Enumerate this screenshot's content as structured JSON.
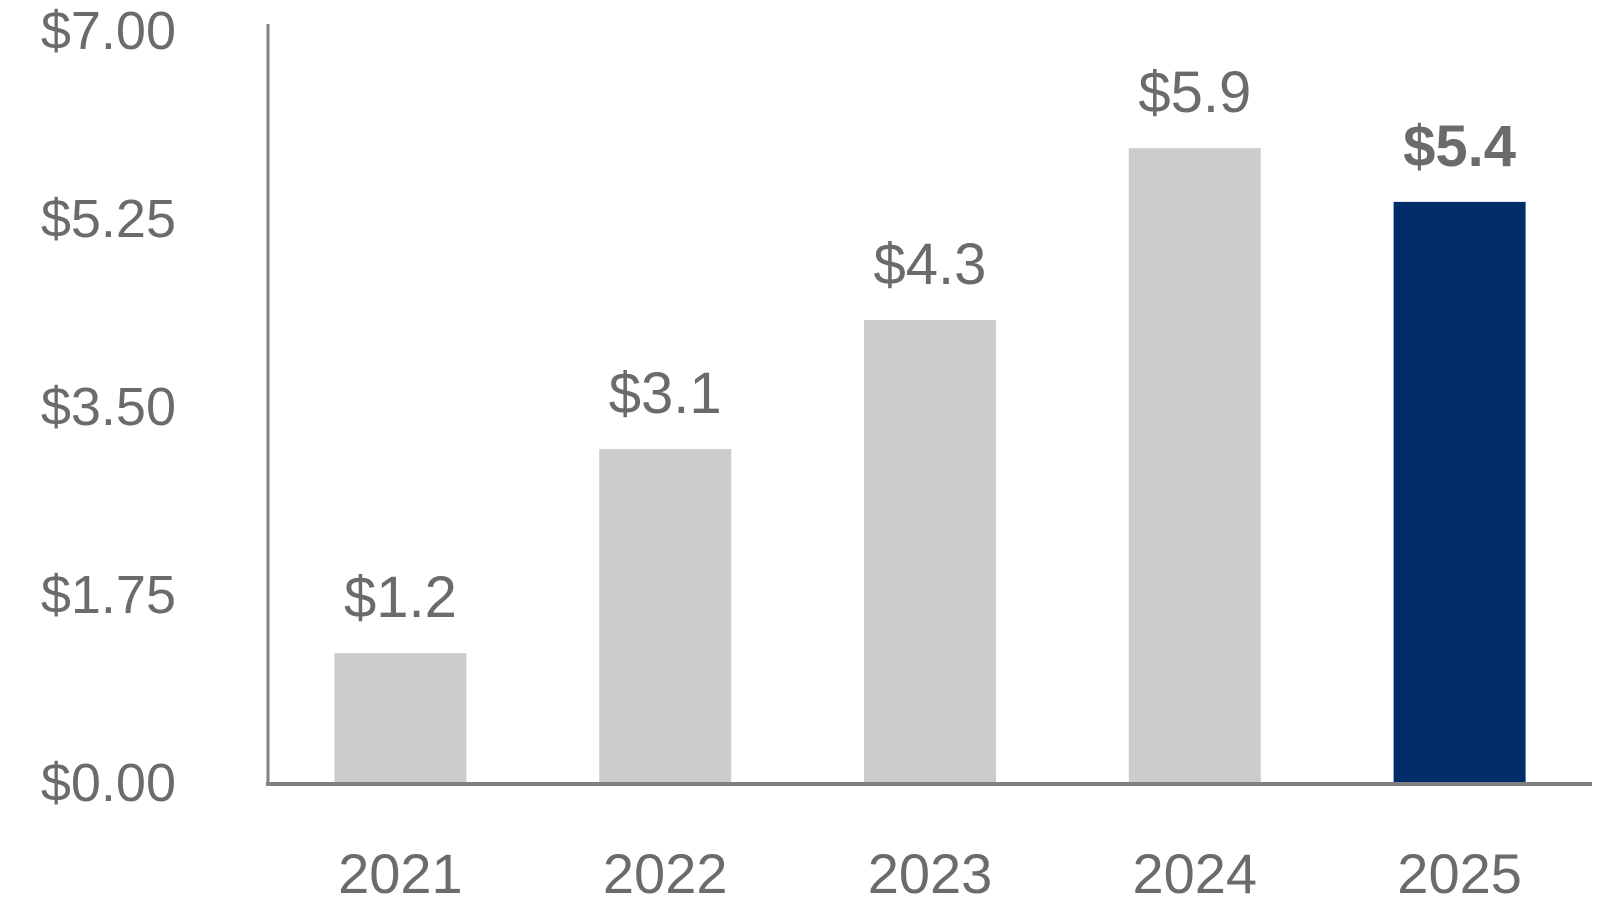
{
  "chart_data": {
    "type": "bar",
    "categories": [
      "2021",
      "2022",
      "2023",
      "2024",
      "2025"
    ],
    "values": [
      1.2,
      3.1,
      4.3,
      5.9,
      5.4
    ],
    "data_labels": [
      "$1.2",
      "$3.1",
      "$4.3",
      "$5.9",
      "$5.4"
    ],
    "highlight_index": 4,
    "y_ticks": [
      0,
      1.75,
      3.5,
      5.25,
      7
    ],
    "y_tick_labels": [
      "$0.00",
      "$1.75",
      "$3.50",
      "$5.25",
      "$7.00"
    ],
    "ylim": [
      0,
      7
    ],
    "title": "",
    "xlabel": "",
    "ylabel": "",
    "grid": false,
    "legend": "none",
    "colors": {
      "bar": "#cccccc",
      "highlight": "#002d6a",
      "axis": "#808080",
      "text": "#6b6b6b"
    }
  }
}
